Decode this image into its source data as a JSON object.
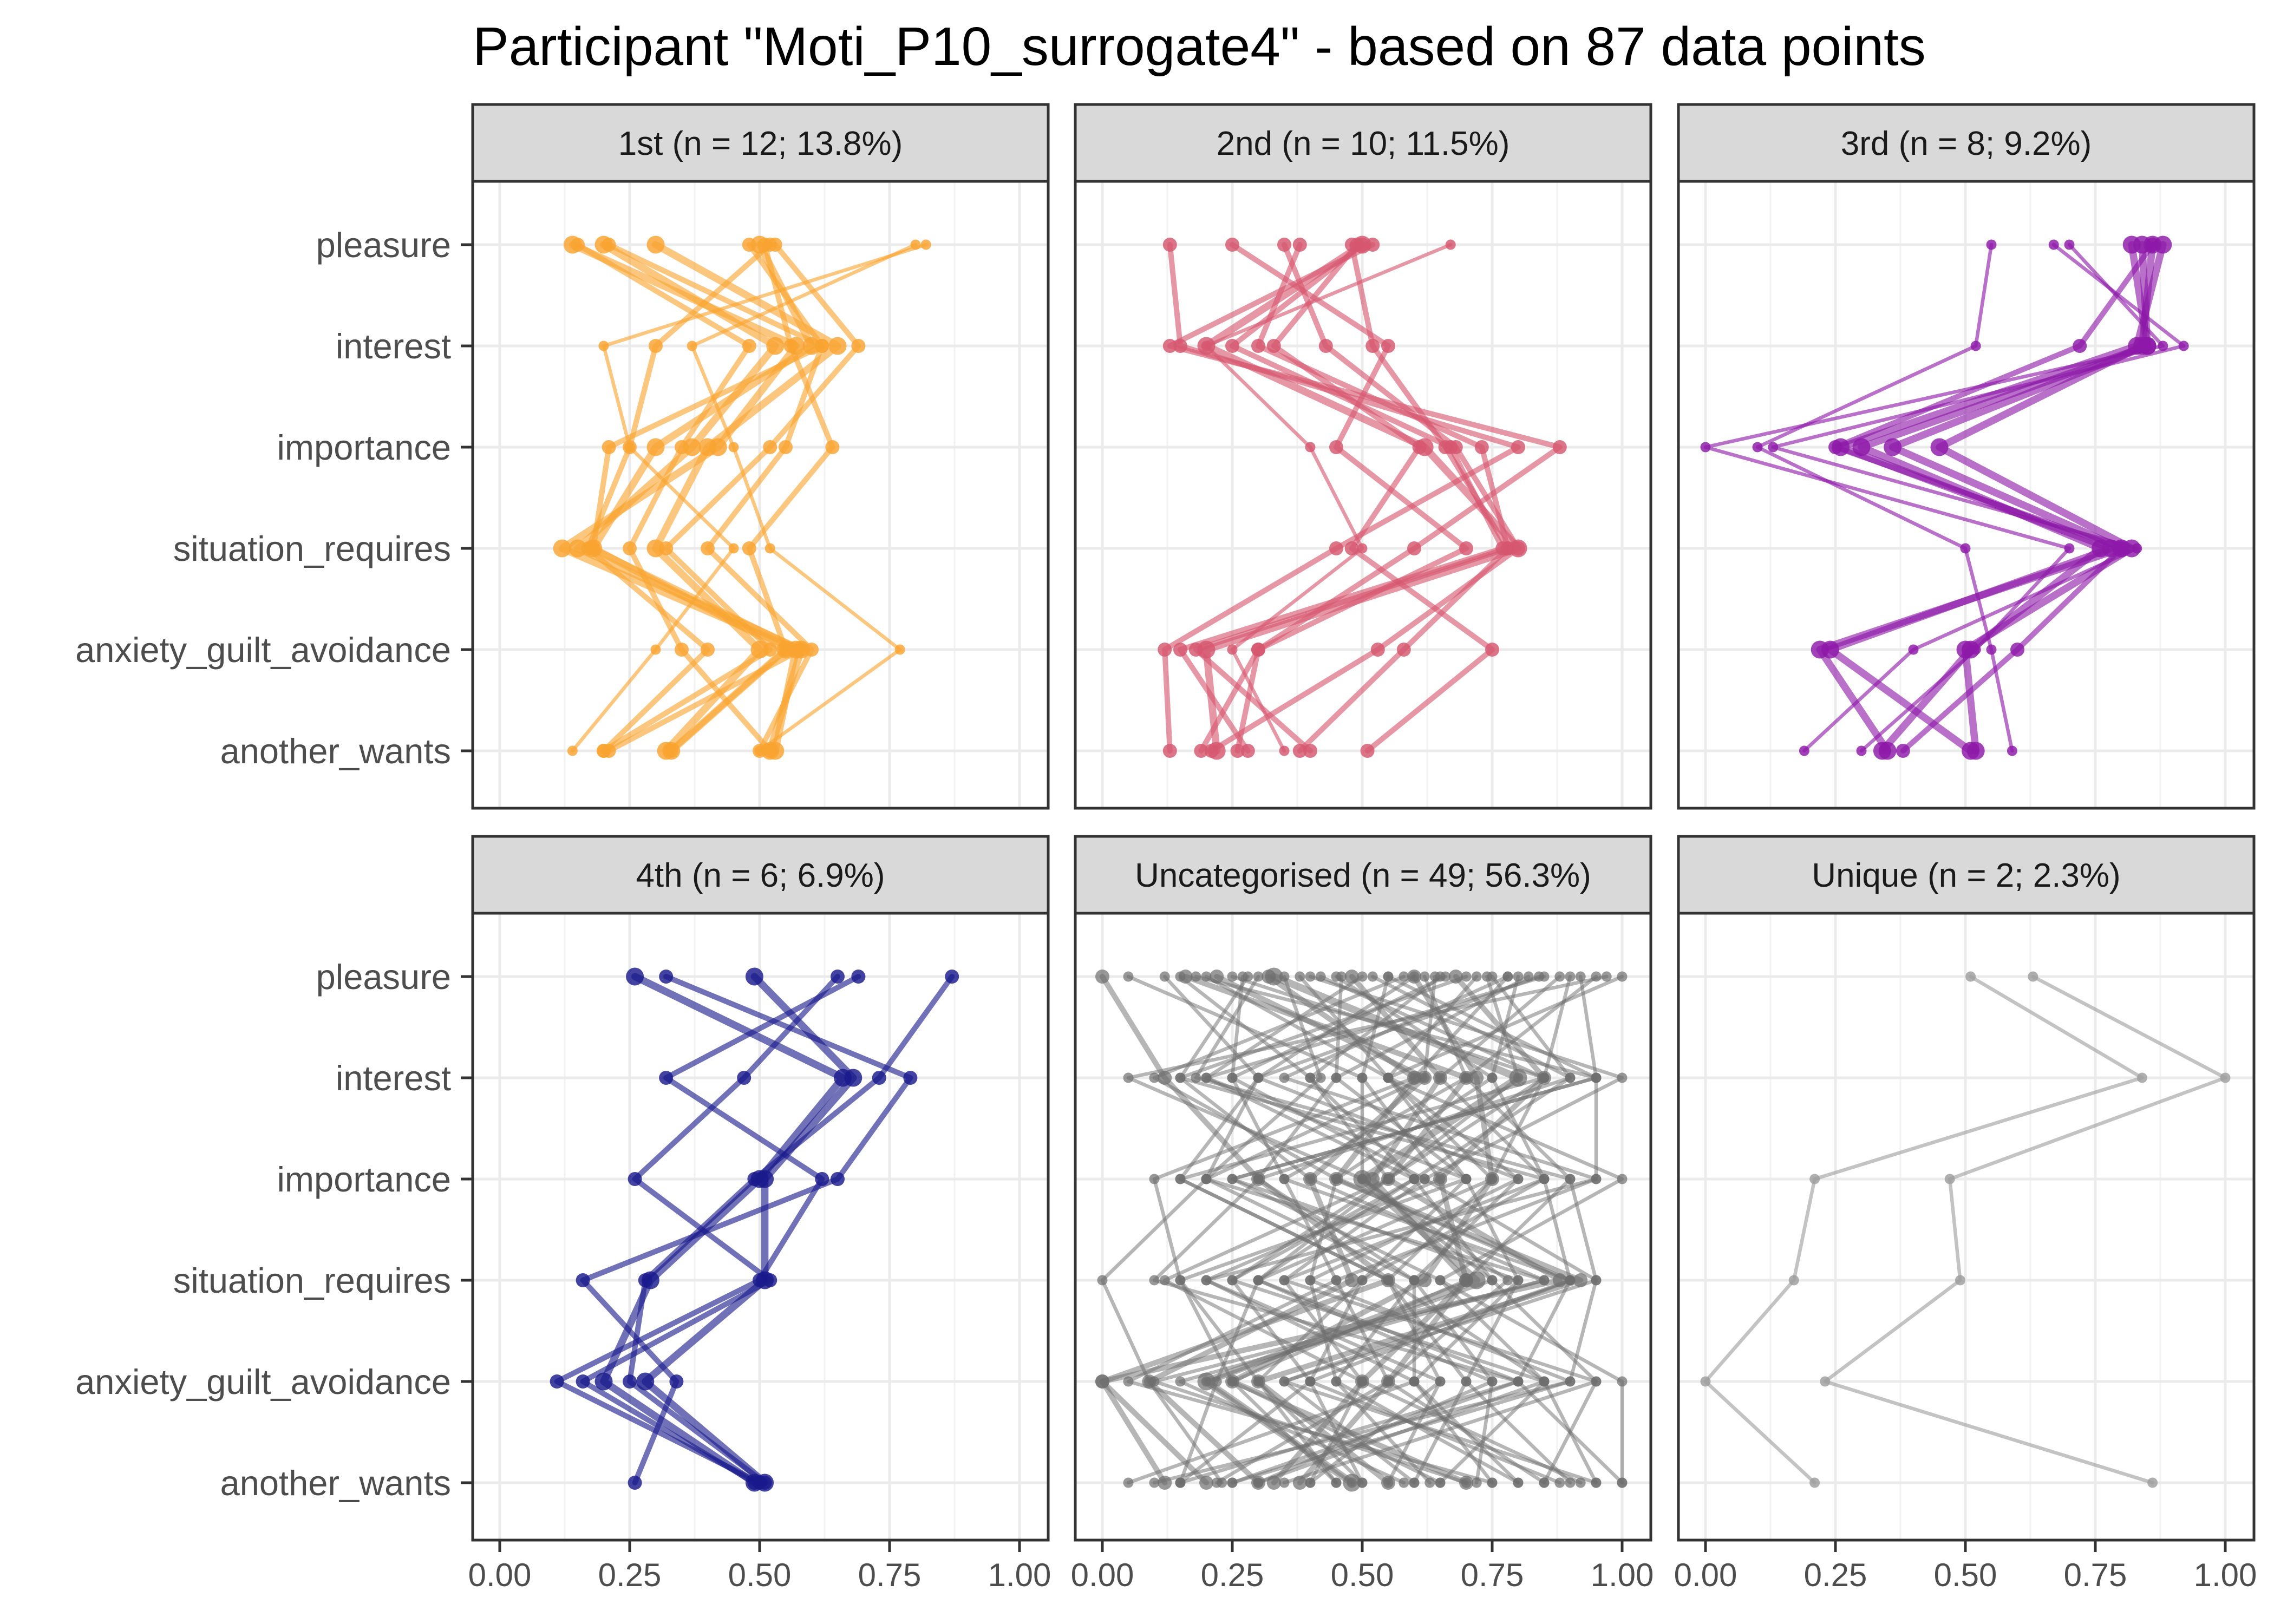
{
  "title": "Participant \"Moti_P10_surrogate4\" - based on 87 data points",
  "chart_data": {
    "type": "line",
    "facets_layout": "2 rows x 3 columns",
    "grid": true,
    "xlim": [
      0,
      1
    ],
    "x_ticks": [
      "0.00",
      "0.25",
      "0.50",
      "0.75",
      "1.00"
    ],
    "x_tick_values": [
      0,
      0.25,
      0.5,
      0.75,
      1
    ],
    "categories": [
      "pleasure",
      "interest",
      "importance",
      "situation_requires",
      "anxiety_guilt_avoidance",
      "another_wants"
    ],
    "panels": [
      {
        "label": "1st (n = 12; 13.8%)",
        "color": "#F9A431",
        "profiles": [
          {
            "values": [
              0.14,
              0.57,
              0.42,
              0.12,
              0.57,
              0.53
            ],
            "weight": 3
          },
          {
            "values": [
              0.2,
              0.53,
              0.37,
              0.15,
              0.58,
              0.52
            ],
            "weight": 3
          },
          {
            "values": [
              0.3,
              0.65,
              0.4,
              0.3,
              0.5,
              0.32
            ],
            "weight": 3
          },
          {
            "values": [
              0.52,
              0.3,
              0.25,
              0.17,
              0.4,
              0.2
            ],
            "weight": 2
          },
          {
            "values": [
              0.5,
              0.6,
              0.3,
              0.18,
              0.55,
              0.33
            ],
            "weight": 3
          },
          {
            "values": [
              0.48,
              0.62,
              0.55,
              0.4,
              0.6,
              0.5
            ],
            "weight": 2
          },
          {
            "values": [
              0.8,
              0.37,
              0.45,
              0.52,
              0.77,
              0.5
            ],
            "weight": 1
          },
          {
            "values": [
              0.82,
              0.2,
              0.25,
              0.45,
              0.3,
              0.14
            ],
            "weight": 1
          },
          {
            "values": [
              0.53,
              0.69,
              0.52,
              0.32,
              0.52,
              0.2
            ],
            "weight": 2
          },
          {
            "values": [
              0.21,
              0.62,
              0.21,
              0.18,
              0.58,
              0.21
            ],
            "weight": 2
          },
          {
            "values": [
              0.51,
              0.56,
              0.64,
              0.48,
              0.55,
              0.33
            ],
            "weight": 2
          },
          {
            "values": [
              0.15,
              0.48,
              0.35,
              0.25,
              0.35,
              0.52
            ],
            "weight": 2
          }
        ]
      },
      {
        "label": "2nd (n = 10; 11.5%)",
        "color": "#D6576F",
        "profiles": [
          {
            "values": [
              0.13,
              0.15,
              0.8,
              0.45,
              0.12,
              0.13
            ],
            "weight": 2
          },
          {
            "values": [
              0.5,
              0.2,
              0.62,
              0.8,
              0.2,
              0.22
            ],
            "weight": 3
          },
          {
            "values": [
              0.38,
              0.3,
              0.73,
              0.78,
              0.18,
              0.4
            ],
            "weight": 2
          },
          {
            "values": [
              0.48,
              0.52,
              0.66,
              0.78,
              0.58,
              0.38
            ],
            "weight": 2
          },
          {
            "values": [
              0.52,
              0.13,
              0.88,
              0.6,
              0.3,
              0.19
            ],
            "weight": 2
          },
          {
            "values": [
              0.25,
              0.55,
              0.45,
              0.7,
              0.3,
              0.26
            ],
            "weight": 2
          },
          {
            "values": [
              0.49,
              0.33,
              0.61,
              0.48,
              0.75,
              0.51
            ],
            "weight": 2
          },
          {
            "values": [
              0.67,
              0.2,
              0.4,
              0.5,
              0.25,
              0.35
            ],
            "weight": 1
          },
          {
            "values": [
              0.35,
              0.43,
              0.68,
              0.8,
              0.53,
              0.21
            ],
            "weight": 2
          },
          {
            "values": [
              0.5,
              0.25,
              0.67,
              0.77,
              0.15,
              0.28
            ],
            "weight": 2
          }
        ]
      },
      {
        "label": "3rd (n = 8; 9.2%)",
        "color": "#8D18A8",
        "profiles": [
          {
            "values": [
              0.84,
              0.85,
              0.36,
              0.8,
              0.22,
              0.35
            ],
            "weight": 3
          },
          {
            "values": [
              0.88,
              0.83,
              0.26,
              0.78,
              0.24,
              0.51
            ],
            "weight": 3
          },
          {
            "values": [
              0.82,
              0.85,
              0.3,
              0.76,
              0.51,
              0.34
            ],
            "weight": 3
          },
          {
            "values": [
              0.86,
              0.84,
              0.45,
              0.82,
              0.5,
              0.52
            ],
            "weight": 3
          },
          {
            "values": [
              0.55,
              0.52,
              0.1,
              0.5,
              0.55,
              0.59
            ],
            "weight": 1
          },
          {
            "values": [
              0.67,
              0.92,
              0.13,
              0.83,
              0.4,
              0.19
            ],
            "weight": 1
          },
          {
            "values": [
              0.7,
              0.88,
              0.0,
              0.7,
              0.52,
              0.3
            ],
            "weight": 1
          },
          {
            "values": [
              0.86,
              0.72,
              0.25,
              0.8,
              0.6,
              0.38
            ],
            "weight": 2
          }
        ]
      },
      {
        "label": "4th (n = 6; 6.9%)",
        "color": "#1A1A8C",
        "profiles": [
          {
            "values": [
              0.26,
              0.66,
              0.5,
              0.29,
              0.2,
              0.49
            ],
            "weight": 3
          },
          {
            "values": [
              0.49,
              0.68,
              0.51,
              0.51,
              0.28,
              0.51
            ],
            "weight": 3
          },
          {
            "values": [
              0.65,
              0.47,
              0.26,
              0.52,
              0.16,
              0.49
            ],
            "weight": 2
          },
          {
            "values": [
              0.32,
              0.79,
              0.65,
              0.16,
              0.34,
              0.26
            ],
            "weight": 2
          },
          {
            "values": [
              0.69,
              0.32,
              0.62,
              0.5,
              0.11,
              0.5
            ],
            "weight": 2
          },
          {
            "values": [
              0.87,
              0.73,
              0.49,
              0.28,
              0.25,
              0.51
            ],
            "weight": 2
          }
        ]
      },
      {
        "label": "Uncategorised (n = 49; 56.3%)",
        "color": "#6E6E6E",
        "profiles": [
          {
            "values": [
              0.0,
              0.12,
              0.3,
              0.55,
              0.0,
              0.2
            ],
            "weight": 2
          },
          {
            "values": [
              0.12,
              0.3,
              0.2,
              0.0,
              0.09,
              0.23
            ],
            "weight": 1
          },
          {
            "values": [
              0.16,
              0.7,
              0.55,
              0.88,
              0.0,
              0.12
            ],
            "weight": 2
          },
          {
            "values": [
              0.2,
              0.55,
              0.75,
              0.3,
              0.22,
              0.15
            ],
            "weight": 1
          },
          {
            "values": [
              0.25,
              0.85,
              0.55,
              0.12,
              0.5,
              0.4
            ],
            "weight": 1
          },
          {
            "values": [
              0.3,
              0.18,
              0.9,
              0.7,
              0.25,
              0.65
            ],
            "weight": 1
          },
          {
            "values": [
              0.32,
              0.6,
              0.45,
              0.92,
              0.3,
              0.55
            ],
            "weight": 2
          },
          {
            "values": [
              0.35,
              0.42,
              0.2,
              0.6,
              0.75,
              0.3
            ],
            "weight": 1
          },
          {
            "values": [
              0.4,
              1.0,
              0.62,
              0.35,
              0.95,
              0.85
            ],
            "weight": 1
          },
          {
            "values": [
              0.45,
              0.75,
              0.85,
              0.5,
              0.4,
              0.5
            ],
            "weight": 1
          },
          {
            "values": [
              0.5,
              0.2,
              0.7,
              0.8,
              0.6,
              0.75
            ],
            "weight": 1
          },
          {
            "values": [
              0.52,
              0.9,
              0.6,
              0.3,
              0.8,
              0.15
            ],
            "weight": 1
          },
          {
            "values": [
              0.55,
              0.5,
              0.5,
              0.75,
              0.2,
              0.48
            ],
            "weight": 1
          },
          {
            "values": [
              0.6,
              0.3,
              0.15,
              0.55,
              0.7,
              0.9
            ],
            "weight": 1
          },
          {
            "values": [
              0.62,
              0.7,
              0.9,
              0.95,
              0.35,
              0.6
            ],
            "weight": 1
          },
          {
            "values": [
              0.65,
              0.4,
              0.55,
              0.25,
              0.85,
              0.95
            ],
            "weight": 1
          },
          {
            "values": [
              0.68,
              0.85,
              0.65,
              0.7,
              0.55,
              0.38
            ],
            "weight": 2
          },
          {
            "values": [
              0.7,
              0.15,
              0.4,
              0.85,
              0.1,
              0.7
            ],
            "weight": 1
          },
          {
            "values": [
              0.72,
              0.55,
              0.8,
              0.4,
              0.9,
              0.25
            ],
            "weight": 1
          },
          {
            "values": [
              0.75,
              0.9,
              0.3,
              0.6,
              0.45,
              0.8
            ],
            "weight": 1
          },
          {
            "values": [
              0.78,
              0.35,
              0.95,
              0.2,
              0.65,
              0.55
            ],
            "weight": 1
          },
          {
            "values": [
              0.8,
              0.75,
              0.45,
              0.9,
              0.8,
              1.0
            ],
            "weight": 1
          },
          {
            "values": [
              0.82,
              0.45,
              0.7,
              0.5,
              0.3,
              0.45
            ],
            "weight": 1
          },
          {
            "values": [
              0.85,
              0.2,
              0.6,
              0.75,
              0.95,
              0.35
            ],
            "weight": 1
          },
          {
            "values": [
              0.88,
              0.65,
              0.85,
              0.35,
              0.5,
              0.92
            ],
            "weight": 1
          },
          {
            "values": [
              0.92,
              0.95,
              0.25,
              0.8,
              0.7,
              0.6
            ],
            "weight": 1
          },
          {
            "values": [
              1.0,
              0.55,
              1.0,
              0.65,
              1.0,
              1.0
            ],
            "weight": 1
          },
          {
            "values": [
              0.33,
              0.8,
              0.5,
              0.72,
              0.2,
              0.48
            ],
            "weight": 3
          },
          {
            "values": [
              0.22,
              0.62,
              0.4,
              0.48,
              0.09,
              0.3
            ],
            "weight": 2
          },
          {
            "values": [
              0.48,
              0.65,
              0.52,
              0.7,
              0.5,
              0.33
            ],
            "weight": 2
          },
          {
            "values": [
              0.6,
              0.72,
              0.75,
              0.62,
              0.25,
              0.7
            ],
            "weight": 2
          },
          {
            "values": [
              0.15,
              0.4,
              0.6,
              0.25,
              0.4,
              0.15
            ],
            "weight": 1
          },
          {
            "values": [
              0.27,
              0.25,
              0.35,
              0.45,
              0.55,
              0.22
            ],
            "weight": 1
          },
          {
            "values": [
              0.38,
              0.55,
              0.7,
              0.15,
              0.3,
              0.5
            ],
            "weight": 1
          },
          {
            "values": [
              0.42,
              0.85,
              0.15,
              0.55,
              0.65,
              0.4
            ],
            "weight": 1
          },
          {
            "values": [
              0.58,
              0.1,
              0.45,
              0.4,
              0.45,
              0.63
            ],
            "weight": 1
          },
          {
            "values": [
              0.64,
              0.62,
              0.2,
              0.85,
              0.15,
              0.58
            ],
            "weight": 1
          },
          {
            "values": [
              0.74,
              0.8,
              0.55,
              0.3,
              0.75,
              0.72
            ],
            "weight": 1
          },
          {
            "values": [
              0.84,
              0.3,
              0.8,
              0.6,
              0.6,
              0.8
            ],
            "weight": 1
          },
          {
            "values": [
              0.95,
              0.7,
              0.35,
              0.9,
              0.4,
              0.88
            ],
            "weight": 1
          },
          {
            "values": [
              0.05,
              0.5,
              0.65,
              0.2,
              0.6,
              0.05
            ],
            "weight": 1
          },
          {
            "values": [
              0.18,
              0.95,
              0.25,
              0.65,
              0.85,
              0.3
            ],
            "weight": 1
          },
          {
            "values": [
              0.28,
              0.15,
              0.85,
              0.9,
              0.35,
              0.95
            ],
            "weight": 1
          },
          {
            "values": [
              0.46,
              0.45,
              0.3,
              0.1,
              0.8,
              0.25
            ],
            "weight": 1
          },
          {
            "values": [
              0.55,
              0.95,
              0.95,
              0.45,
              0.05,
              0.75
            ],
            "weight": 1
          },
          {
            "values": [
              0.66,
              0.25,
              0.62,
              0.95,
              0.9,
              0.1
            ],
            "weight": 1
          },
          {
            "values": [
              0.78,
              0.6,
              0.1,
              0.15,
              0.25,
              0.45
            ],
            "weight": 1
          },
          {
            "values": [
              0.9,
              0.85,
              0.75,
              0.55,
              0.85,
              0.65
            ],
            "weight": 1
          },
          {
            "values": [
              0.97,
              0.05,
              0.5,
              0.78,
              0.55,
              0.85
            ],
            "weight": 1
          }
        ]
      },
      {
        "label": "Unique (n = 2; 2.3%)",
        "color": "#9E9E9E",
        "profiles": [
          {
            "values": [
              0.51,
              0.84,
              0.21,
              0.17,
              0.0,
              0.21
            ],
            "weight": 1
          },
          {
            "values": [
              0.63,
              1.0,
              0.47,
              0.49,
              0.23,
              0.86
            ],
            "weight": 1
          }
        ]
      }
    ]
  }
}
